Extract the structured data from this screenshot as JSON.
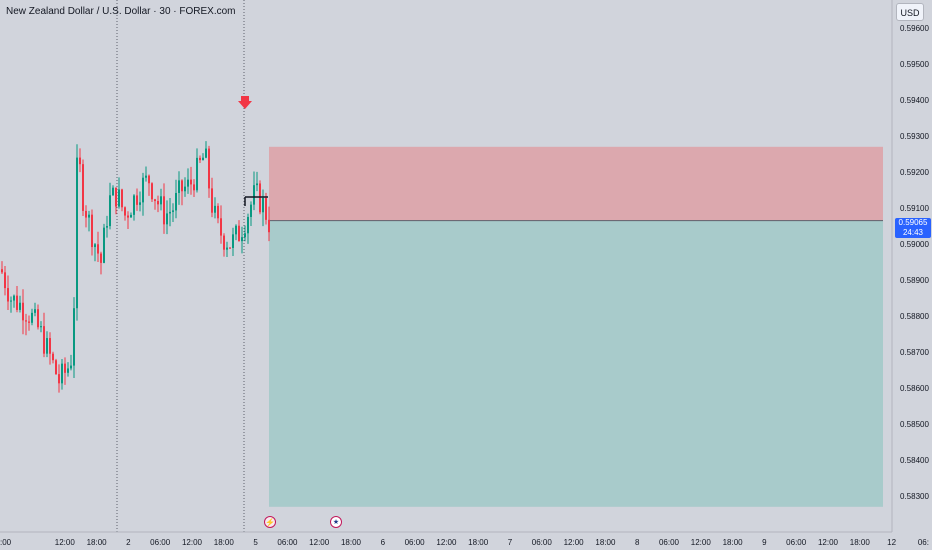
{
  "header": {
    "title": "New Zealand Dollar / U.S. Dollar · 30 · FOREX.com",
    "currency": "USD"
  },
  "price_axis": {
    "labels": [
      "0.59600",
      "0.59500",
      "0.59400",
      "0.59300",
      "0.59200",
      "0.59100",
      "0.59000",
      "0.58900",
      "0.58800",
      "0.58700",
      "0.58600",
      "0.58500",
      "0.58400",
      "0.58300"
    ],
    "current_price": "0.59065",
    "countdown": "24:43"
  },
  "time_axis": {
    "labels": [
      ":00",
      "12:00",
      "18:00",
      "2",
      "06:00",
      "12:00",
      "18:00",
      "5",
      "06:00",
      "12:00",
      "18:00",
      "6",
      "06:00",
      "12:00",
      "18:00",
      "7",
      "06:00",
      "12:00",
      "18:00",
      "8",
      "06:00",
      "12:00",
      "18:00",
      "9",
      "06:00",
      "12:00",
      "18:00",
      "12",
      "06:"
    ]
  },
  "position": {
    "type": "short",
    "entry": 0.59065,
    "stop": 0.5927,
    "target": 0.5827
  },
  "events": [
    {
      "name": "flash-event",
      "icon": "lightning-icon",
      "glyph": "⚡"
    },
    {
      "name": "us-event",
      "icon": "us-flag-icon",
      "glyph": "★"
    }
  ],
  "colors": {
    "background": "#d1d4dc",
    "up": "#089981",
    "down": "#f23645",
    "stop_zone": "#dca8ae",
    "target_zone": "#a8cbcb",
    "accent": "#2962ff"
  }
}
